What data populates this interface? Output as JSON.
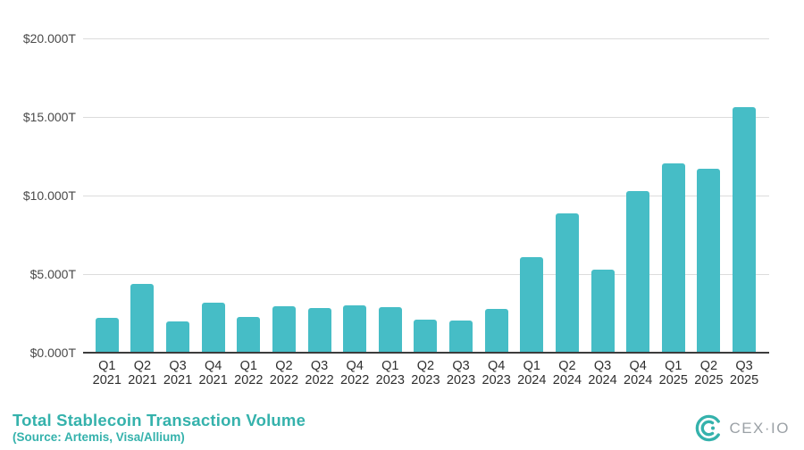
{
  "chart_data": {
    "type": "bar",
    "title": "Total Stablecoin Transaction Volume",
    "source_note": "(Source: Artemis, Visa/Allium)",
    "categories": [
      "Q1 2021",
      "Q2 2021",
      "Q3 2021",
      "Q4 2021",
      "Q1 2022",
      "Q2 2022",
      "Q3 2022",
      "Q4 2022",
      "Q1 2023",
      "Q2 2023",
      "Q3 2023",
      "Q4 2023",
      "Q1 2024",
      "Q2 2024",
      "Q3 2024",
      "Q4 2024",
      "Q1 2025",
      "Q2 2025",
      "Q3 2025"
    ],
    "values": [
      2.2,
      4.4,
      2.0,
      3.2,
      2.3,
      2.95,
      2.85,
      3.0,
      2.9,
      2.1,
      2.05,
      2.8,
      6.1,
      8.85,
      5.3,
      10.3,
      12.05,
      11.7,
      15.6
    ],
    "unit": "T (trillions USD)",
    "ylim": [
      0,
      20
    ],
    "y_ticks": [
      {
        "value": 20,
        "label": "$20.000T"
      },
      {
        "value": 15,
        "label": "$15.000T"
      },
      {
        "value": 10,
        "label": "$10.000T"
      },
      {
        "value": 5,
        "label": "$5.000T"
      },
      {
        "value": 0,
        "label": "$0.000T"
      }
    ],
    "grid": true,
    "legend": false,
    "bar_color": "#46BDC6"
  },
  "footer": {
    "logo_text": "CEX·IO",
    "logo_emblem": "cexio-emblem",
    "accent_color": "#35B2AC",
    "logo_text_color": "#9BA1A6"
  }
}
